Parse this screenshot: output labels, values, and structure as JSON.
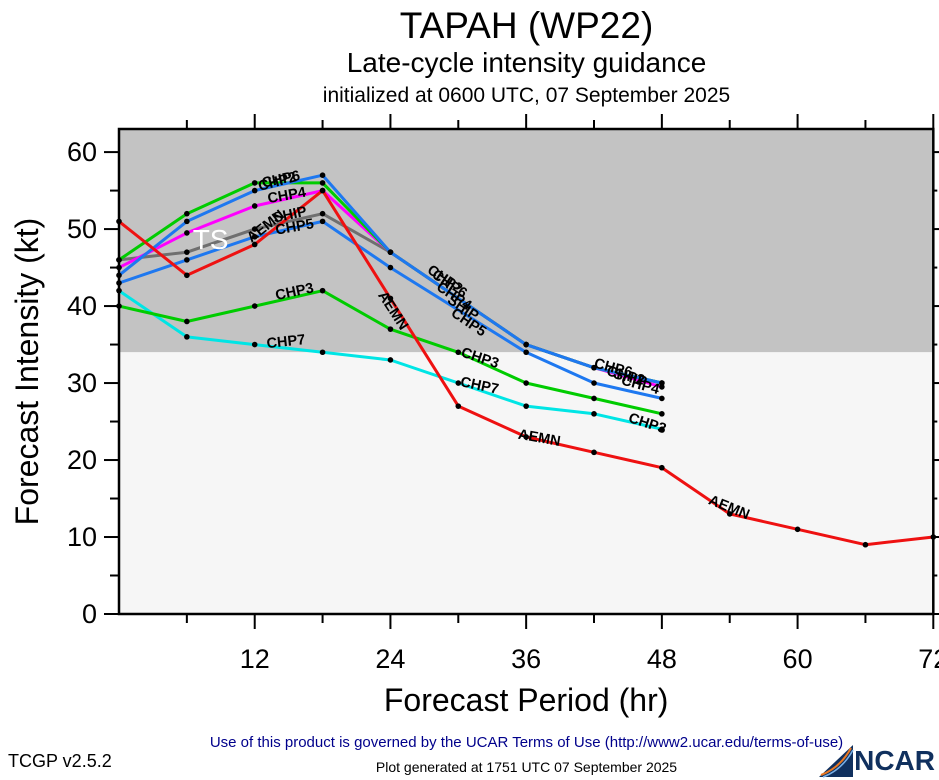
{
  "header": {
    "title": "TAPAH (WP22)",
    "subtitle": "Late-cycle intensity guidance",
    "init_line": "initialized at 0600 UTC, 07 September 2025"
  },
  "chart_data": {
    "type": "line",
    "title": "TAPAH (WP22)",
    "subtitle": "Late-cycle intensity guidance",
    "xlabel": "Forecast Period (hr)",
    "ylabel": "Forecast Intensity (kt)",
    "xlim": [
      0,
      72
    ],
    "ylim": [
      0,
      63
    ],
    "xticks_major": [
      12,
      24,
      36,
      48,
      60,
      72
    ],
    "xticks_minor": [
      6,
      18,
      30,
      42,
      54,
      66
    ],
    "yticks_major": [
      0,
      10,
      20,
      30,
      40,
      50,
      60
    ],
    "yticks_minor": [
      5,
      15,
      25,
      35,
      45,
      55
    ],
    "grid": false,
    "legend_position": "inline-line-labels",
    "ts_band": {
      "label": "TS",
      "threshold_kt": 34,
      "label_hr": 8.1,
      "label_kt": 48.6,
      "band_color": "#c3c3c3",
      "below_color": "#f6f6f6",
      "label_color": "#ffffff"
    },
    "series": [
      {
        "name": "SHIP",
        "color": "#6f6f6f",
        "hours": [
          0,
          6,
          12,
          18,
          24,
          36,
          42,
          48
        ],
        "values": [
          46,
          47,
          50,
          52,
          47,
          35,
          32,
          30
        ]
      },
      {
        "name": "CHP4",
        "color": "#ff00ff",
        "hours": [
          0,
          6,
          12,
          18,
          24,
          36,
          42,
          48
        ],
        "values": [
          45,
          49.5,
          53,
          55,
          47,
          35,
          32,
          29.5
        ]
      },
      {
        "name": "CHP6",
        "color": "#00cc00",
        "hours": [
          0,
          6,
          12,
          18,
          24,
          36,
          42,
          48
        ],
        "values": [
          46,
          52,
          56,
          56,
          47,
          35,
          32,
          30
        ]
      },
      {
        "name": "CHP5",
        "color": "#1e78f0",
        "hours": [
          0,
          6,
          12,
          18,
          24,
          36,
          42,
          48
        ],
        "values": [
          43,
          46,
          49,
          51,
          45,
          34,
          30,
          28
        ]
      },
      {
        "name": "CHP2",
        "color": "#1e78f0",
        "hours": [
          0,
          6,
          12,
          18,
          24,
          36,
          42,
          48
        ],
        "values": [
          44,
          51,
          55,
          57,
          47,
          35,
          32,
          30
        ]
      },
      {
        "name": "CHP7",
        "color": "#00e5e5",
        "hours": [
          0,
          6,
          12,
          18,
          24,
          30,
          36,
          42,
          48
        ],
        "values": [
          42,
          36,
          35,
          34,
          33,
          30,
          27,
          26,
          24
        ]
      },
      {
        "name": "CHP3",
        "color": "#00cc00",
        "hours": [
          0,
          6,
          12,
          18,
          24,
          30,
          36,
          42,
          48
        ],
        "values": [
          40,
          38,
          40,
          42,
          37,
          34,
          30,
          28,
          26
        ]
      },
      {
        "name": "AEMN",
        "color": "#ee1111",
        "hours": [
          0,
          6,
          12,
          18,
          24,
          30,
          36,
          42,
          48,
          54,
          60,
          66,
          72
        ],
        "values": [
          51,
          44,
          48,
          55,
          41,
          27,
          23,
          21,
          19,
          13,
          11,
          9,
          10
        ]
      }
    ],
    "line_labels": [
      {
        "text": "CHP6",
        "hr": 14.4,
        "kt": 55.9,
        "rot": -12
      },
      {
        "text": "CHP2",
        "hr": 14.1,
        "kt": 55.6,
        "rot": -15
      },
      {
        "text": "CHP4",
        "hr": 14.9,
        "kt": 53.8,
        "rot": -10
      },
      {
        "text": "SHIP",
        "hr": 15.2,
        "kt": 51.3,
        "rot": -12
      },
      {
        "text": "AEMN",
        "hr": 13.2,
        "kt": 49.9,
        "rot": -38
      },
      {
        "text": "CHP5",
        "hr": 15.6,
        "kt": 49.7,
        "rot": -10
      },
      {
        "text": "CHP3",
        "hr": 15.6,
        "kt": 41.3,
        "rot": -12
      },
      {
        "text": "CHP7",
        "hr": 14.8,
        "kt": 34.8,
        "rot": -6
      },
      {
        "text": "CHP2",
        "hr": 28.6,
        "kt": 43.0,
        "rot": 34
      },
      {
        "text": "CHP6",
        "hr": 29.0,
        "kt": 42.4,
        "rot": 34
      },
      {
        "text": "CHP4",
        "hr": 29.4,
        "kt": 40.8,
        "rot": 34
      },
      {
        "text": "SHIP",
        "hr": 30.2,
        "kt": 39.3,
        "rot": 34
      },
      {
        "text": "CHP5",
        "hr": 30.7,
        "kt": 37.4,
        "rot": 34
      },
      {
        "text": "AEMN",
        "hr": 23.9,
        "kt": 39.1,
        "rot": 57
      },
      {
        "text": "CHP3",
        "hr": 31.8,
        "kt": 32.7,
        "rot": 18
      },
      {
        "text": "CHP7",
        "hr": 31.8,
        "kt": 29.1,
        "rot": 12
      },
      {
        "text": "AEMN",
        "hr": 37.1,
        "kt": 22.3,
        "rot": 10
      },
      {
        "text": "CHP6",
        "hr": 43.6,
        "kt": 31.4,
        "rot": 15
      },
      {
        "text": "CHP2",
        "hr": 44.7,
        "kt": 30.4,
        "rot": 15
      },
      {
        "text": "SHIP",
        "hr": 45.1,
        "kt": 30.1,
        "rot": 15
      },
      {
        "text": "CHP4",
        "hr": 46.0,
        "kt": 29.2,
        "rot": 15
      },
      {
        "text": "CHP3",
        "hr": 46.6,
        "kt": 24.2,
        "rot": 18
      },
      {
        "text": "AEMN",
        "hr": 53.8,
        "kt": 13.3,
        "rot": 22
      }
    ]
  },
  "footer": {
    "terms": "Use of this product is governed by the UCAR Terms of Use (http://www2.ucar.edu/terms-of-use)",
    "version": "TCGP v2.5.2",
    "generated": "Plot generated at 1751 UTC   07 September 2025",
    "logo_text": "NCAR"
  }
}
